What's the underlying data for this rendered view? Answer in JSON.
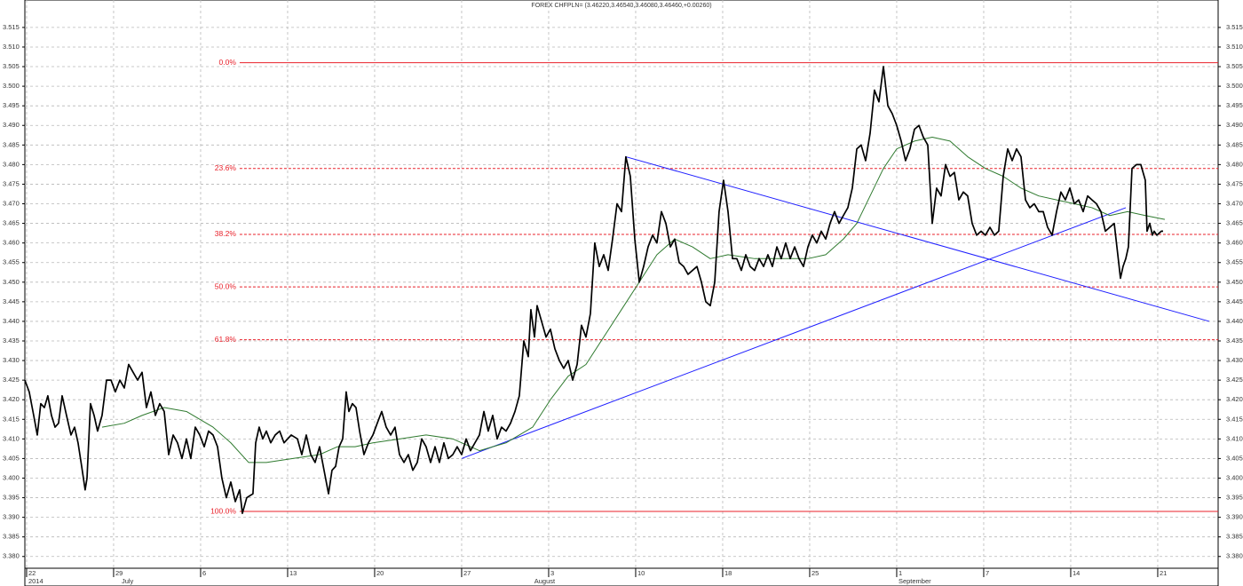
{
  "chart_data": {
    "type": "line",
    "title": "FOREX CHFPLN= (3.46220,3.46540,3.46080,3.46460,+0.00260)",
    "xlim": [
      -0.14,
      95.86
    ],
    "ylim": [
      3.377,
      3.522
    ],
    "grid": true,
    "xticks": [
      {
        "value": 0,
        "label": "22"
      },
      {
        "value": 7,
        "label": "29"
      },
      {
        "value": 14,
        "label": "6"
      },
      {
        "value": 21,
        "label": "13"
      },
      {
        "value": 28,
        "label": "20"
      },
      {
        "value": 35,
        "label": "27"
      },
      {
        "value": 42,
        "label": "3"
      },
      {
        "value": 49,
        "label": "10"
      },
      {
        "value": 56,
        "label": "18"
      },
      {
        "value": 63,
        "label": "25"
      },
      {
        "value": 70,
        "label": "1"
      },
      {
        "value": 77,
        "label": "7"
      },
      {
        "value": 84,
        "label": "14"
      },
      {
        "value": 91,
        "label": "21"
      }
    ],
    "month_labels": [
      {
        "value": 0,
        "label": "2014"
      },
      {
        "value": 7.5,
        "label": "July"
      },
      {
        "value": 40.7,
        "label": "August"
      },
      {
        "value": 70,
        "label": "September"
      }
    ],
    "yticks": [
      {
        "value": 3.38,
        "label": "3.380"
      },
      3.385,
      {
        "value": 3.39,
        "label": "3.390"
      },
      3.395,
      {
        "value": 3.4,
        "label": "3.400"
      },
      3.405,
      {
        "value": 3.41,
        "label": "3.410"
      },
      3.415,
      {
        "value": 3.42,
        "label": "3.420"
      },
      3.425,
      {
        "value": 3.43,
        "label": "3.430"
      },
      3.435,
      {
        "value": 3.44,
        "label": "3.440"
      },
      3.445,
      {
        "value": 3.45,
        "label": "3.450"
      },
      3.455,
      {
        "value": 3.46,
        "label": "3.460"
      },
      3.465,
      {
        "value": 3.47,
        "label": "3.470"
      },
      3.475,
      {
        "value": 3.48,
        "label": "3.480"
      },
      3.485,
      {
        "value": 3.49,
        "label": "3.490"
      },
      3.495,
      {
        "value": 3.5,
        "label": "3.500"
      },
      3.505,
      {
        "value": 3.51,
        "label": "3.510"
      },
      3.515
    ],
    "series": [
      {
        "color": "#000000",
        "x": [
          -0.14,
          0.21,
          0.57,
          0.86,
          1.14,
          1.43,
          1.71,
          2.0,
          2.29,
          2.57,
          2.86,
          3.21,
          3.57,
          3.86,
          4.14,
          4.43,
          4.71,
          4.86,
          5.14,
          5.43,
          5.71,
          6.07,
          6.43,
          6.79,
          7.14,
          7.5,
          7.86,
          8.21,
          8.57,
          8.93,
          9.29,
          9.64,
          10.0,
          10.36,
          10.71,
          11.07,
          11.43,
          11.79,
          12.14,
          12.5,
          12.86,
          13.21,
          13.57,
          13.93,
          14.29,
          14.64,
          15.0,
          15.36,
          15.71,
          16.07,
          16.43,
          16.79,
          17.14,
          17.36,
          17.71,
          18.21,
          18.43,
          18.71,
          19.0,
          19.29,
          19.64,
          20.0,
          20.36,
          20.71,
          21.29,
          21.79,
          22.14,
          22.5,
          22.86,
          23.21,
          23.57,
          23.93,
          24.29,
          24.57,
          24.86,
          25.14,
          25.43,
          25.71,
          25.93,
          26.21,
          26.5,
          26.79,
          27.14,
          27.5,
          27.86,
          28.21,
          28.57,
          28.93,
          29.29,
          29.64,
          30.0,
          30.36,
          30.71,
          31.07,
          31.43,
          31.79,
          32.14,
          32.5,
          32.86,
          33.21,
          33.57,
          33.93,
          34.29,
          34.64,
          35.0,
          35.36,
          35.71,
          36.07,
          36.43,
          36.79,
          37.14,
          37.5,
          37.86,
          38.21,
          38.57,
          38.93,
          39.29,
          39.64,
          40.0,
          40.36,
          40.57,
          40.86,
          41.07,
          41.43,
          41.79,
          42.14,
          42.5,
          42.86,
          43.21,
          43.57,
          43.93,
          44.29,
          44.64,
          45.0,
          45.36,
          45.71,
          46.07,
          46.43,
          46.79,
          47.14,
          47.5,
          47.86,
          48.21,
          48.57,
          48.93,
          49.29,
          49.64,
          50.0,
          50.36,
          50.71,
          51.07,
          51.43,
          51.79,
          52.14,
          52.5,
          52.86,
          53.21,
          53.57,
          53.93,
          54.29,
          54.64,
          55.0,
          55.36,
          55.71,
          56.07,
          56.43,
          56.79,
          57.14,
          57.5,
          57.86,
          58.21,
          58.57,
          58.93,
          59.29,
          59.64,
          60.0,
          60.36,
          60.71,
          61.07,
          61.43,
          61.79,
          62.14,
          62.5,
          62.86,
          63.21,
          63.57,
          63.93,
          64.29,
          64.64,
          65.0,
          65.36,
          65.71,
          66.07,
          66.43,
          66.79,
          67.14,
          67.5,
          67.86,
          68.21,
          68.57,
          68.93,
          69.29,
          69.64,
          70.0,
          70.36,
          70.71,
          71.07,
          71.43,
          71.79,
          72.14,
          72.5,
          72.86,
          73.21,
          73.57,
          73.93,
          74.29,
          74.64,
          75.0,
          75.36,
          75.71,
          76.07,
          76.43,
          76.79,
          77.14,
          77.5,
          77.86,
          78.21,
          78.57,
          78.93,
          79.29,
          79.64,
          80.0,
          80.36,
          80.71,
          81.07,
          81.43,
          81.79,
          82.14,
          82.5,
          82.86,
          83.21,
          83.57,
          83.93,
          84.29,
          84.64,
          85.0,
          85.36,
          85.71,
          86.07,
          86.43,
          86.79,
          87.14,
          87.5,
          87.86,
          88.0,
          88.21,
          88.43,
          88.64,
          88.93,
          89.29,
          89.64,
          90.0,
          90.14,
          90.36,
          90.57,
          90.71,
          90.93,
          91.29,
          91.43
        ],
        "values": [
          3.425,
          3.422,
          3.416,
          3.411,
          3.419,
          3.418,
          3.421,
          3.416,
          3.413,
          3.414,
          3.421,
          3.416,
          3.411,
          3.413,
          3.409,
          3.403,
          3.397,
          3.4,
          3.419,
          3.416,
          3.412,
          3.416,
          3.425,
          3.425,
          3.422,
          3.425,
          3.423,
          3.429,
          3.427,
          3.425,
          3.427,
          3.418,
          3.422,
          3.416,
          3.419,
          3.417,
          3.406,
          3.411,
          3.409,
          3.405,
          3.41,
          3.405,
          3.413,
          3.411,
          3.408,
          3.412,
          3.411,
          3.408,
          3.4,
          3.395,
          3.399,
          3.394,
          3.397,
          3.391,
          3.395,
          3.396,
          3.409,
          3.413,
          3.41,
          3.412,
          3.409,
          3.411,
          3.412,
          3.409,
          3.411,
          3.41,
          3.406,
          3.411,
          3.406,
          3.404,
          3.408,
          3.402,
          3.396,
          3.402,
          3.403,
          3.408,
          3.41,
          3.422,
          3.417,
          3.419,
          3.418,
          3.412,
          3.406,
          3.409,
          3.411,
          3.414,
          3.417,
          3.413,
          3.411,
          3.413,
          3.406,
          3.404,
          3.406,
          3.402,
          3.404,
          3.41,
          3.408,
          3.404,
          3.408,
          3.404,
          3.409,
          3.405,
          3.406,
          3.408,
          3.406,
          3.41,
          3.407,
          3.409,
          3.411,
          3.417,
          3.412,
          3.416,
          3.41,
          3.413,
          3.412,
          3.414,
          3.417,
          3.421,
          3.435,
          3.431,
          3.443,
          3.436,
          3.444,
          3.44,
          3.436,
          3.438,
          3.433,
          3.43,
          3.428,
          3.43,
          3.425,
          3.429,
          3.439,
          3.436,
          3.442,
          3.46,
          3.454,
          3.457,
          3.453,
          3.461,
          3.47,
          3.468,
          3.482,
          3.477,
          3.461,
          3.45,
          3.454,
          3.459,
          3.462,
          3.46,
          3.468,
          3.465,
          3.459,
          3.461,
          3.455,
          3.454,
          3.452,
          3.453,
          3.454,
          3.45,
          3.445,
          3.444,
          3.45,
          3.468,
          3.476,
          3.468,
          3.456,
          3.456,
          3.453,
          3.457,
          3.454,
          3.453,
          3.456,
          3.454,
          3.457,
          3.454,
          3.459,
          3.456,
          3.46,
          3.456,
          3.459,
          3.456,
          3.454,
          3.459,
          3.462,
          3.46,
          3.463,
          3.461,
          3.465,
          3.468,
          3.465,
          3.467,
          3.469,
          3.474,
          3.484,
          3.485,
          3.481,
          3.488,
          3.499,
          3.496,
          3.505,
          3.495,
          3.493,
          3.49,
          3.486,
          3.481,
          3.484,
          3.489,
          3.49,
          3.487,
          3.485,
          3.465,
          3.474,
          3.472,
          3.48,
          3.477,
          3.478,
          3.471,
          3.473,
          3.472,
          3.465,
          3.462,
          3.463,
          3.462,
          3.464,
          3.462,
          3.463,
          3.477,
          3.484,
          3.481,
          3.484,
          3.482,
          3.471,
          3.469,
          3.47,
          3.468,
          3.468,
          3.464,
          3.462,
          3.468,
          3.473,
          3.471,
          3.474,
          3.47,
          3.471,
          3.468,
          3.472,
          3.471,
          3.47,
          3.468,
          3.463,
          3.464,
          3.465,
          3.455,
          3.451,
          3.454,
          3.456,
          3.459,
          3.479,
          3.48,
          3.48,
          3.476,
          3.463,
          3.465,
          3.462,
          3.463,
          3.462,
          3.463,
          3.463
        ]
      },
      {
        "color": "#2f7a2f",
        "x": [
          6.07,
          7.86,
          9.29,
          11.07,
          12.86,
          15.0,
          16.43,
          17.86,
          19.29,
          21.43,
          23.57,
          25.0,
          26.43,
          27.86,
          30.0,
          32.14,
          34.29,
          36.43,
          38.57,
          40.71,
          42.14,
          43.57,
          45.0,
          46.43,
          47.86,
          49.29,
          50.71,
          52.14,
          53.57,
          55.0,
          56.43,
          58.57,
          60.71,
          62.86,
          64.29,
          65.71,
          66.79,
          67.86,
          68.93,
          70.0,
          71.43,
          72.86,
          74.29,
          75.71,
          77.14,
          78.57,
          80.0,
          81.43,
          82.86,
          84.29,
          85.71,
          87.14,
          88.57,
          90.0,
          91.57
        ],
        "values": [
          3.413,
          3.414,
          3.416,
          3.418,
          3.417,
          3.413,
          3.409,
          3.404,
          3.404,
          3.405,
          3.406,
          3.408,
          3.408,
          3.409,
          3.41,
          3.411,
          3.41,
          3.407,
          3.409,
          3.413,
          3.42,
          3.426,
          3.429,
          3.436,
          3.443,
          3.45,
          3.457,
          3.461,
          3.459,
          3.456,
          3.457,
          3.456,
          3.456,
          3.456,
          3.457,
          3.461,
          3.465,
          3.472,
          3.479,
          3.484,
          3.486,
          3.487,
          3.486,
          3.482,
          3.479,
          3.477,
          3.474,
          3.472,
          3.471,
          3.47,
          3.469,
          3.467,
          3.468,
          3.467,
          3.466
        ]
      }
    ],
    "trendlines": [
      {
        "color": "#1f1fff",
        "x": [
          35.0,
          88.43
        ],
        "values": [
          3.405,
          3.469
        ]
      },
      {
        "color": "#1f1fff",
        "x": [
          48.21,
          95.14
        ],
        "values": [
          3.482,
          3.44
        ]
      }
    ],
    "fibonacci": {
      "color": "#e8202a",
      "x_start": 17.14,
      "levels": [
        {
          "label": "0.0%",
          "value": 3.506,
          "dashed": false
        },
        {
          "label": "23.6%",
          "value": 3.479,
          "dashed": true
        },
        {
          "label": "38.2%",
          "value": 3.4622,
          "dashed": true
        },
        {
          "label": "50.0%",
          "value": 3.4488,
          "dashed": true
        },
        {
          "label": "61.8%",
          "value": 3.4353,
          "dashed": true
        },
        {
          "label": "100.0%",
          "value": 3.3915,
          "dashed": false
        }
      ]
    }
  }
}
